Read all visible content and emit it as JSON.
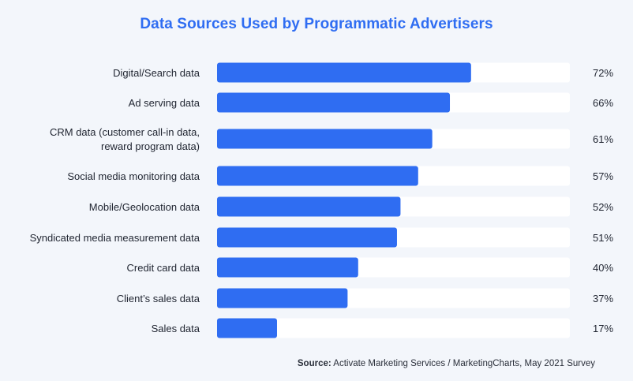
{
  "chart_data": {
    "type": "bar",
    "orientation": "horizontal",
    "title": "Data Sources Used by Programmatic Advertisers",
    "categories": [
      [
        "Digital/Search data"
      ],
      [
        "Ad serving data"
      ],
      [
        "CRM data (customer call-in data,",
        "reward program data)"
      ],
      [
        "Social media monitoring data"
      ],
      [
        "Mobile/Geolocation data"
      ],
      [
        "Syndicated media measurement data"
      ],
      [
        "Credit card data"
      ],
      [
        "Client’s sales data"
      ],
      [
        "Sales data"
      ]
    ],
    "values": [
      72,
      66,
      61,
      57,
      52,
      51,
      40,
      37,
      17
    ],
    "value_labels": [
      "72%",
      "66%",
      "61%",
      "57%",
      "52%",
      "51%",
      "40%",
      "37%",
      "17%"
    ],
    "xlim": [
      0,
      100
    ],
    "grid": false,
    "legend": "none",
    "colors": {
      "bar": "#2f6df2",
      "track": "#ffffff",
      "title": "#2f6df2"
    }
  },
  "source": {
    "label": "Source:",
    "text": " Activate Marketing Services / MarketingCharts, May 2021 Survey"
  }
}
